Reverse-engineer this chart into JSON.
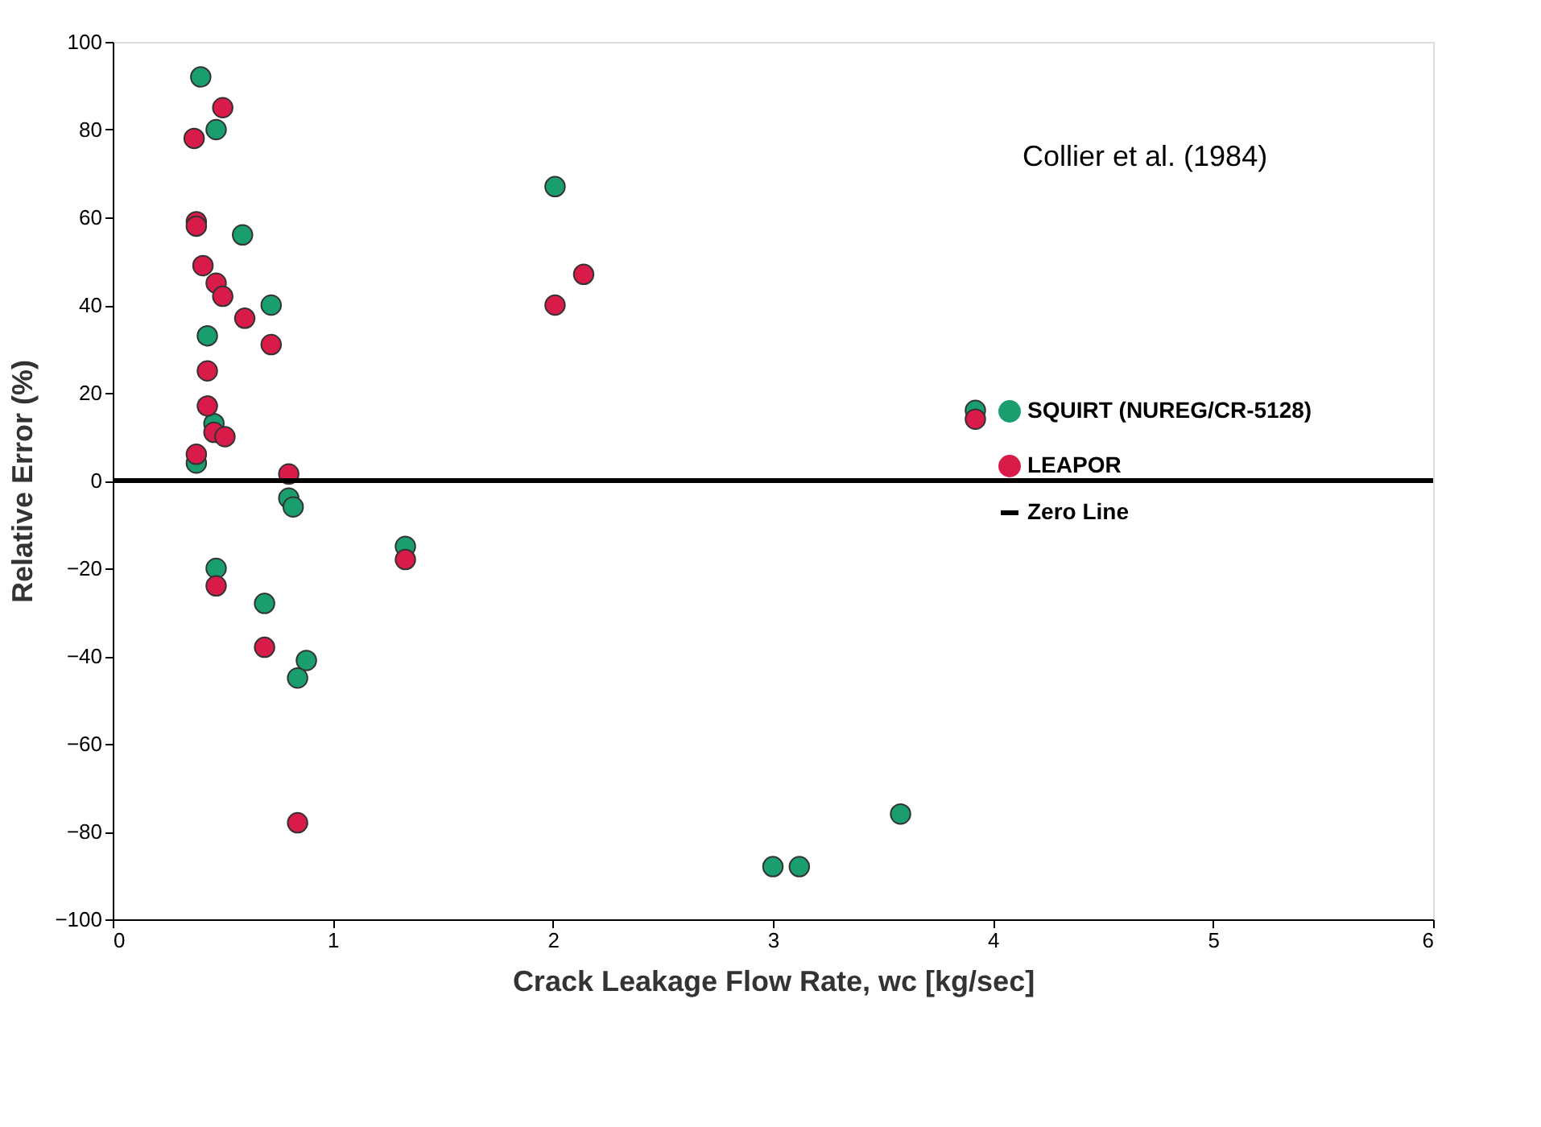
{
  "chart_data": {
    "type": "scatter",
    "xlabel": "Crack Leakage Flow Rate, wc [kg/sec]",
    "ylabel": "Relative Error (%)",
    "annotations": [
      "Collier et al. (1984)"
    ],
    "xlim": [
      0,
      6
    ],
    "xticks": [
      0,
      1,
      2,
      3,
      4,
      5,
      6
    ],
    "ylim": [
      -100,
      100
    ],
    "yticks": [
      -100,
      -80,
      -60,
      -40,
      -20,
      0,
      20,
      40,
      60,
      80,
      100
    ],
    "grid": false,
    "legend": "right",
    "marker": "circle",
    "series": [
      {
        "name": "SQUIRT (NUREG/CR-5128)",
        "color": "#1a9e6e",
        "x": [
          0.4,
          0.47,
          0.59,
          0.72,
          0.43,
          0.46,
          0.38,
          0.8,
          0.82,
          0.47,
          0.69,
          0.88,
          0.84,
          1.33,
          2.01,
          3.92,
          3.0,
          3.12,
          3.58
        ],
        "values": [
          92,
          80,
          56,
          40,
          33,
          13,
          4,
          -4,
          -6,
          -20,
          -28,
          -41,
          -45,
          -15,
          67,
          16,
          -88,
          -88,
          -76
        ]
      },
      {
        "name": "LEAPOR",
        "color": "#d81b48",
        "x": [
          0.5,
          0.37,
          0.38,
          0.38,
          0.41,
          0.47,
          0.5,
          0.6,
          0.72,
          0.43,
          0.43,
          0.46,
          0.51,
          0.38,
          0.8,
          0.47,
          0.69,
          0.84,
          1.33,
          2.14,
          2.01,
          3.92
        ],
        "values": [
          85,
          78,
          59,
          58,
          49,
          45,
          42,
          37,
          31,
          25,
          17,
          11,
          10,
          6,
          1.5,
          -24,
          -38,
          -78,
          -18,
          47,
          40,
          14
        ]
      },
      {
        "name": "Zero Line",
        "type": "line",
        "marker": "none",
        "color": "#000000",
        "x": [
          0,
          6
        ],
        "values": [
          0,
          0
        ]
      }
    ]
  }
}
